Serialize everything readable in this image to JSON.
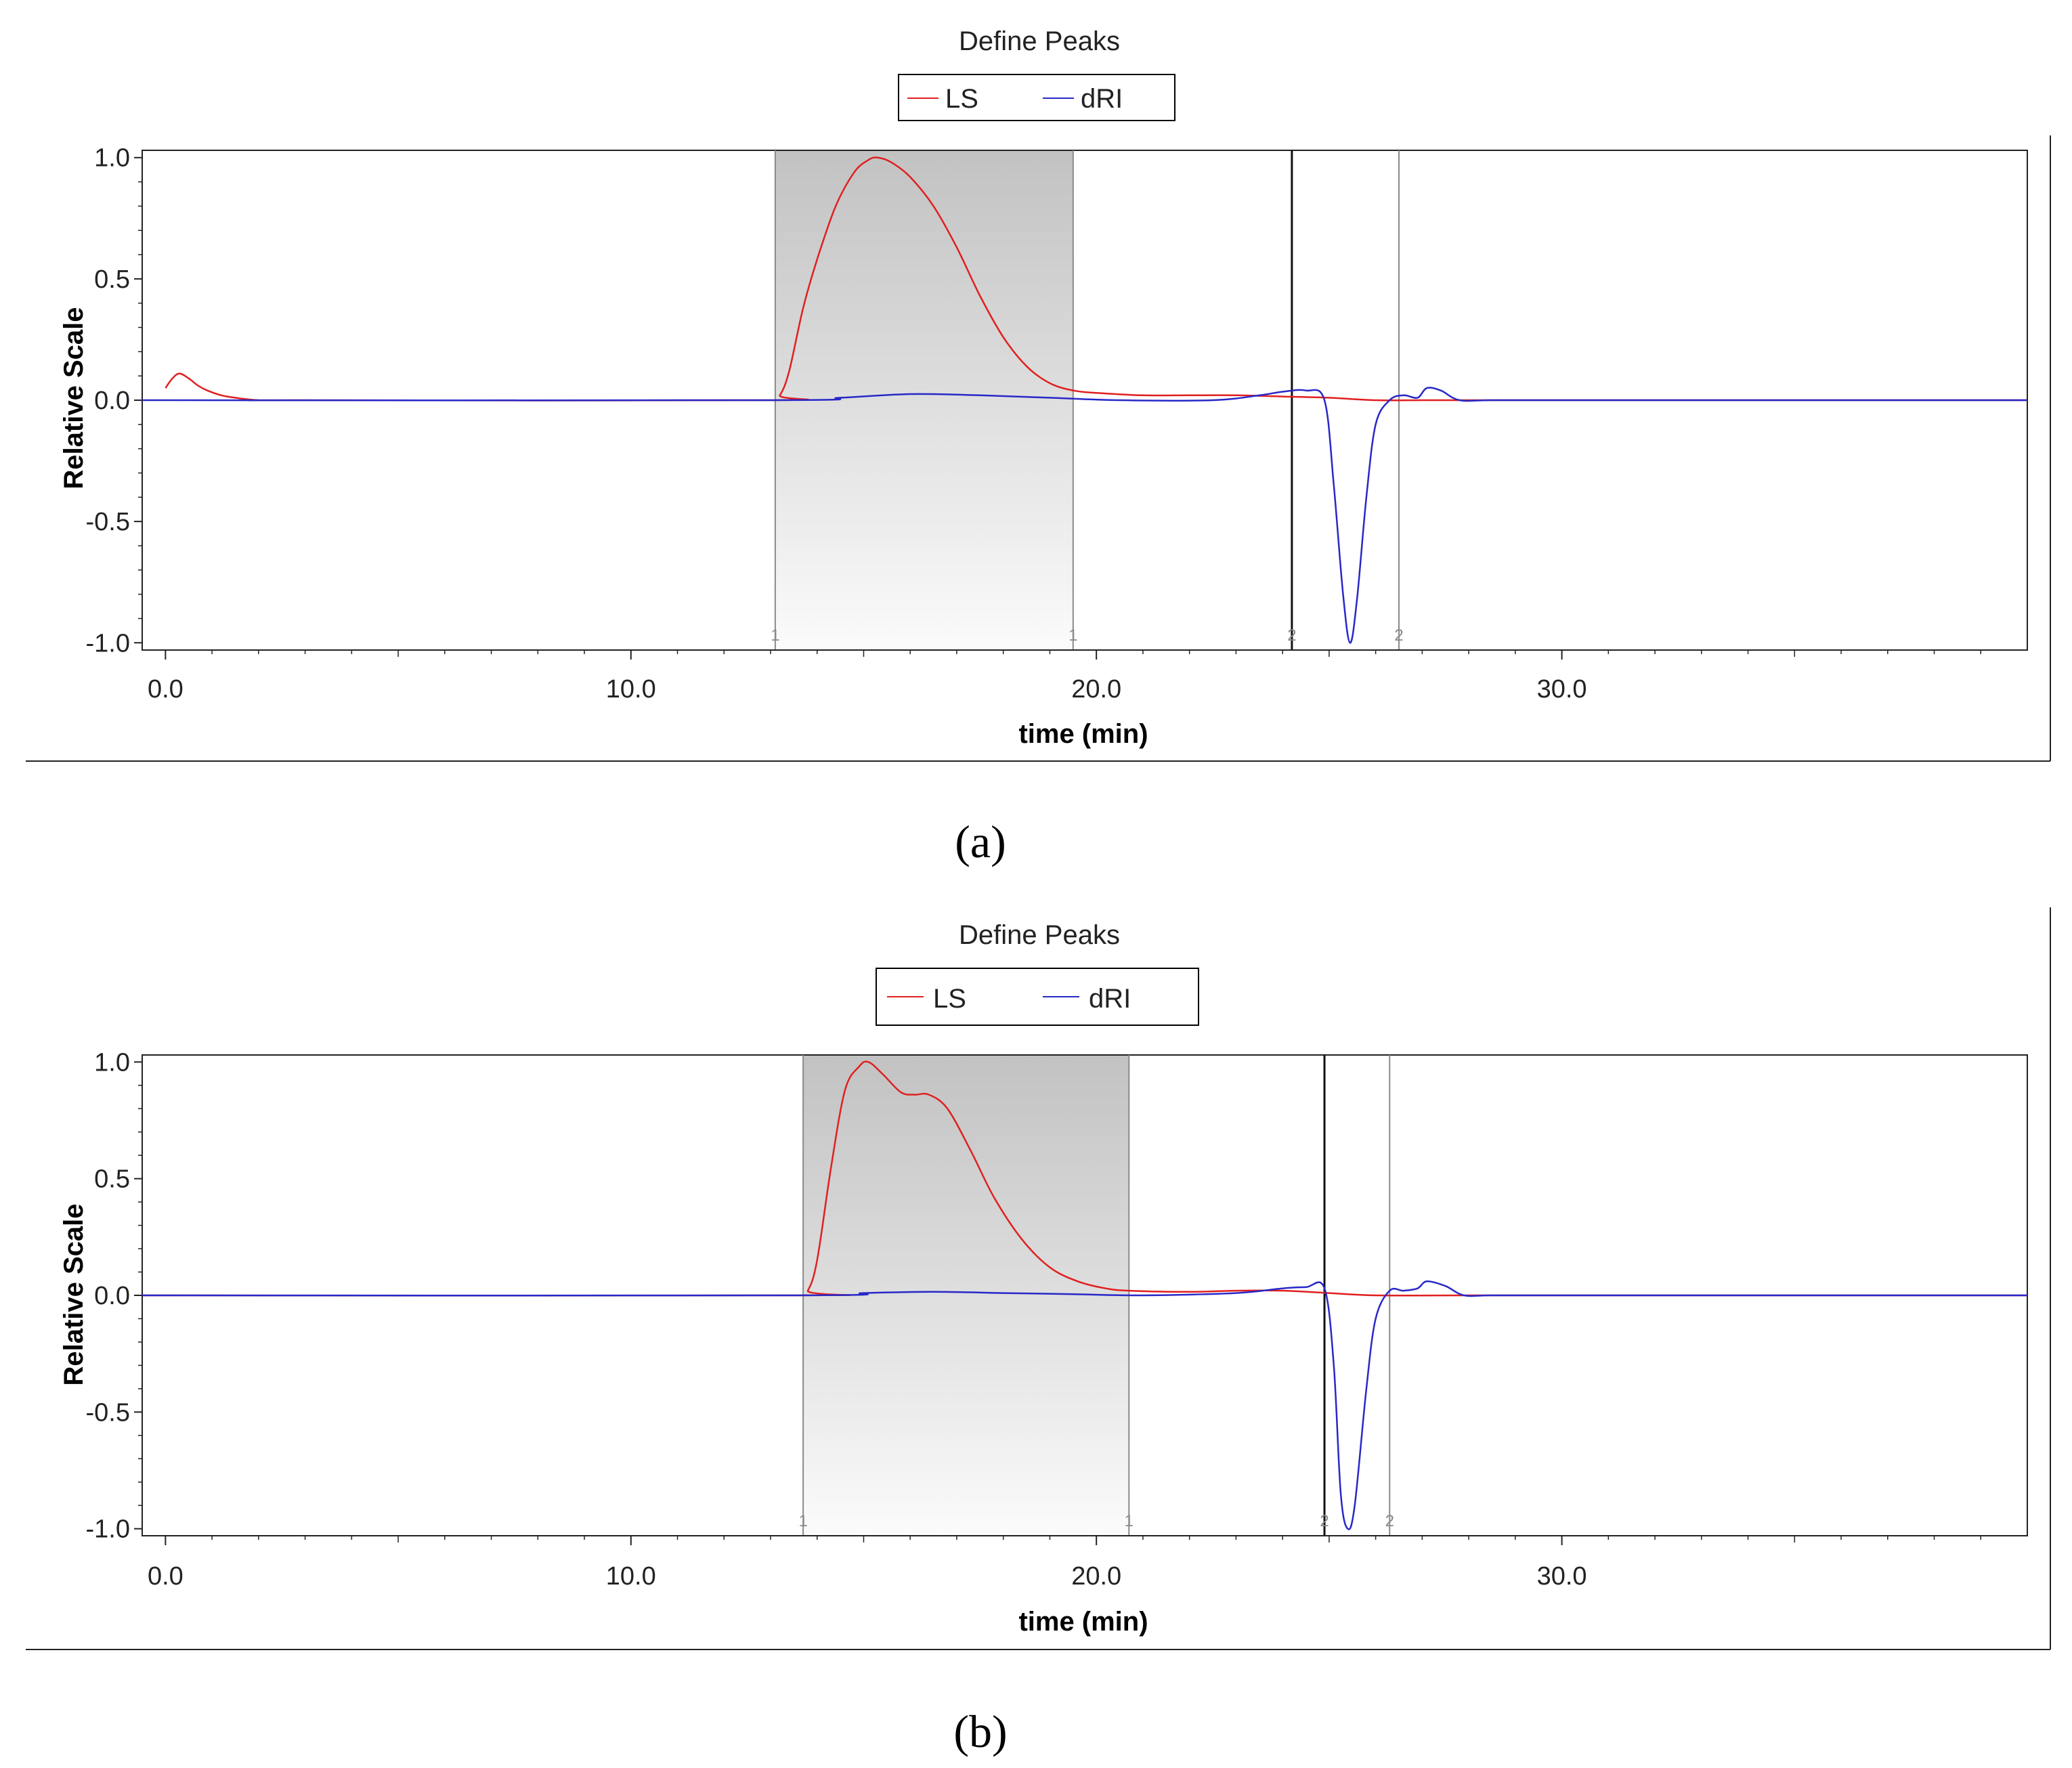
{
  "chart_data": [
    {
      "type": "line",
      "title": "Define Peaks",
      "caption": "(a)",
      "xlabel": "time (min)",
      "ylabel": "Relative Scale",
      "xlim": [
        -0.5,
        40.0
      ],
      "ylim": [
        -1.03,
        1.03
      ],
      "x_ticks": [
        0,
        10,
        20,
        30
      ],
      "x_tick_labels": [
        "0.0",
        "10.0",
        "20.0",
        "30.0"
      ],
      "y_ticks": [
        1.0,
        0.5,
        0.0,
        -0.5,
        -1.0
      ],
      "y_tick_labels": [
        "1.0",
        "0.5",
        "0.0",
        "-0.5",
        "-1.0"
      ],
      "legend": {
        "placement": "top-center",
        "entries": [
          "LS",
          "dRI"
        ]
      },
      "shaded_region": {
        "x_start": 13.1,
        "x_end": 19.5,
        "label": "1"
      },
      "markers": [
        {
          "x": 13.1,
          "label": "1"
        },
        {
          "x": 19.5,
          "label": "1"
        },
        {
          "x": 24.2,
          "label": "2"
        },
        {
          "x": 26.5,
          "label": "2"
        }
      ],
      "series": [
        {
          "name": "LS",
          "color": "#e02020",
          "x": [
            0.0,
            0.15,
            0.3,
            0.5,
            0.7,
            0.9,
            1.2,
            1.5,
            2.0,
            2.8,
            13.0,
            13.2,
            13.4,
            13.7,
            14.0,
            14.4,
            14.8,
            15.1,
            15.3,
            15.6,
            16.0,
            16.5,
            17.0,
            17.5,
            18.0,
            18.5,
            19.0,
            19.5,
            20.0,
            21.0,
            22.0,
            23.0,
            24.0,
            25.0,
            26.0,
            27.0,
            28.0,
            30.0,
            33.0,
            36.0,
            38.0,
            40.0
          ],
          "y": [
            0.05,
            0.09,
            0.11,
            0.09,
            0.06,
            0.04,
            0.02,
            0.01,
            0.0,
            0.0,
            0.0,
            0.02,
            0.12,
            0.38,
            0.58,
            0.8,
            0.94,
            0.99,
            1.0,
            0.98,
            0.92,
            0.8,
            0.63,
            0.43,
            0.26,
            0.14,
            0.07,
            0.04,
            0.03,
            0.02,
            0.02,
            0.02,
            0.015,
            0.01,
            0.0,
            0.0,
            0.0,
            0.0,
            0.0,
            0.0,
            0.0,
            0.0
          ]
        },
        {
          "name": "dRI",
          "color": "#2828c8",
          "x": [
            -0.5,
            13.0,
            14.5,
            16.0,
            17.5,
            19.0,
            20.5,
            22.5,
            23.5,
            24.0,
            24.5,
            24.9,
            25.1,
            25.3,
            25.45,
            25.6,
            25.8,
            26.0,
            26.3,
            26.6,
            26.9,
            27.1,
            27.4,
            27.8,
            28.5,
            30.0,
            34.0,
            37.0,
            40.0
          ],
          "y": [
            0.0,
            0.0,
            0.01,
            0.025,
            0.02,
            0.01,
            0.0,
            0.0,
            0.02,
            0.035,
            0.04,
            0.0,
            -0.35,
            -0.8,
            -1.0,
            -0.82,
            -0.4,
            -0.1,
            0.0,
            0.02,
            0.01,
            0.05,
            0.04,
            0.0,
            0.0,
            0.0,
            0.0,
            0.0,
            0.0
          ]
        }
      ]
    },
    {
      "type": "line",
      "title": "Define Peaks",
      "caption": "(b)",
      "xlabel": "time (min)",
      "ylabel": "Relative Scale",
      "xlim": [
        -0.5,
        40.0
      ],
      "ylim": [
        -1.03,
        1.03
      ],
      "x_ticks": [
        0,
        10,
        20,
        30
      ],
      "x_tick_labels": [
        "0.0",
        "10.0",
        "20.0",
        "30.0"
      ],
      "y_ticks": [
        1.0,
        0.5,
        0.0,
        -0.5,
        -1.0
      ],
      "y_tick_labels": [
        "1.0",
        "0.5",
        "0.0",
        "-0.5",
        "-1.0"
      ],
      "legend": {
        "placement": "top-center",
        "entries": [
          "LS",
          "dRI"
        ]
      },
      "shaded_region": {
        "x_start": 13.7,
        "x_end": 20.7,
        "label": "1"
      },
      "markers": [
        {
          "x": 13.7,
          "label": "1"
        },
        {
          "x": 20.7,
          "label": "1"
        },
        {
          "x": 24.9,
          "label": "2"
        },
        {
          "x": 26.3,
          "label": "2"
        }
      ],
      "series": [
        {
          "name": "LS",
          "color": "#e02020",
          "x": [
            -0.5,
            13.6,
            13.8,
            14.0,
            14.3,
            14.6,
            14.9,
            15.1,
            15.4,
            15.8,
            16.1,
            16.4,
            16.8,
            17.3,
            17.8,
            18.4,
            19.0,
            19.6,
            20.2,
            20.7,
            22.0,
            23.0,
            24.0,
            25.0,
            26.0,
            28.0,
            30.0,
            34.0,
            37.0,
            40.0
          ],
          "y": [
            0.0,
            0.0,
            0.02,
            0.15,
            0.55,
            0.88,
            0.98,
            1.0,
            0.95,
            0.87,
            0.86,
            0.86,
            0.8,
            0.62,
            0.42,
            0.24,
            0.12,
            0.06,
            0.03,
            0.02,
            0.015,
            0.02,
            0.02,
            0.01,
            0.0,
            0.0,
            0.0,
            0.0,
            0.0,
            0.0
          ]
        },
        {
          "name": "dRI",
          "color": "#2828c8",
          "x": [
            -0.5,
            13.6,
            15.0,
            16.5,
            18.0,
            19.5,
            21.0,
            23.0,
            24.0,
            24.5,
            24.9,
            25.1,
            25.25,
            25.4,
            25.55,
            25.8,
            26.0,
            26.3,
            26.6,
            26.9,
            27.1,
            27.5,
            27.9,
            28.5,
            30.0,
            34.0,
            37.0,
            40.0
          ],
          "y": [
            0.0,
            0.0,
            0.01,
            0.015,
            0.01,
            0.005,
            0.0,
            0.01,
            0.03,
            0.035,
            0.03,
            -0.3,
            -0.85,
            -1.0,
            -0.9,
            -0.4,
            -0.1,
            0.02,
            0.02,
            0.03,
            0.06,
            0.04,
            0.0,
            0.0,
            0.0,
            0.0,
            0.0,
            0.0
          ]
        }
      ]
    }
  ]
}
